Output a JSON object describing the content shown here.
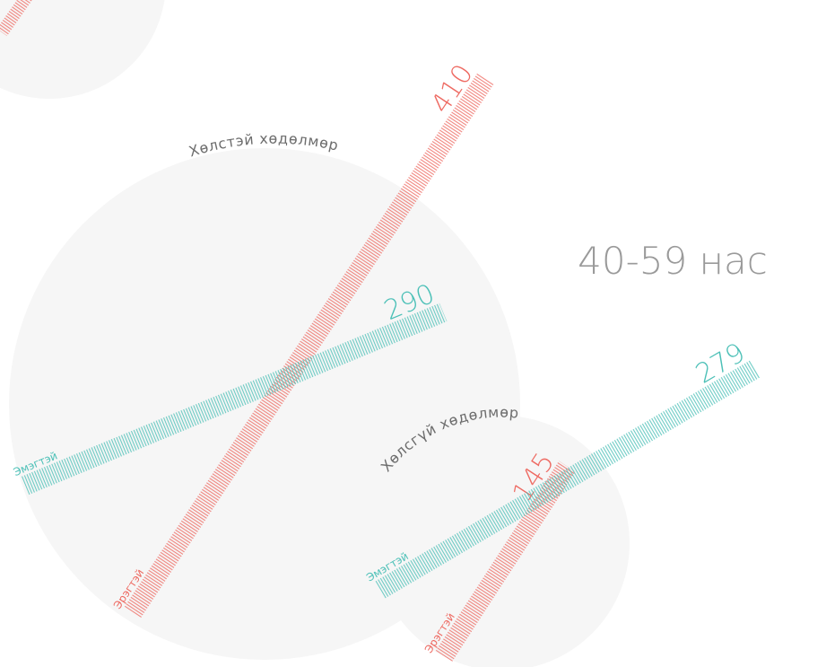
{
  "chart_data": {
    "type": "bar",
    "title": "40-59 нас",
    "categories": [
      "Хөлстэй хөдөлмөр",
      "Хөлсгүй хөдөлмөр"
    ],
    "series": [
      {
        "name": "Эрэгтэй",
        "values": [
          410,
          145
        ]
      },
      {
        "name": "Эмэгтэй",
        "values": [
          290,
          279
        ]
      }
    ]
  },
  "colors": {
    "male": "#ee6a62",
    "female": "#4cc0b7",
    "bubble": "#f6f6f6",
    "age_label": "#9a9a9a",
    "group_label": "#6d6d6d"
  }
}
